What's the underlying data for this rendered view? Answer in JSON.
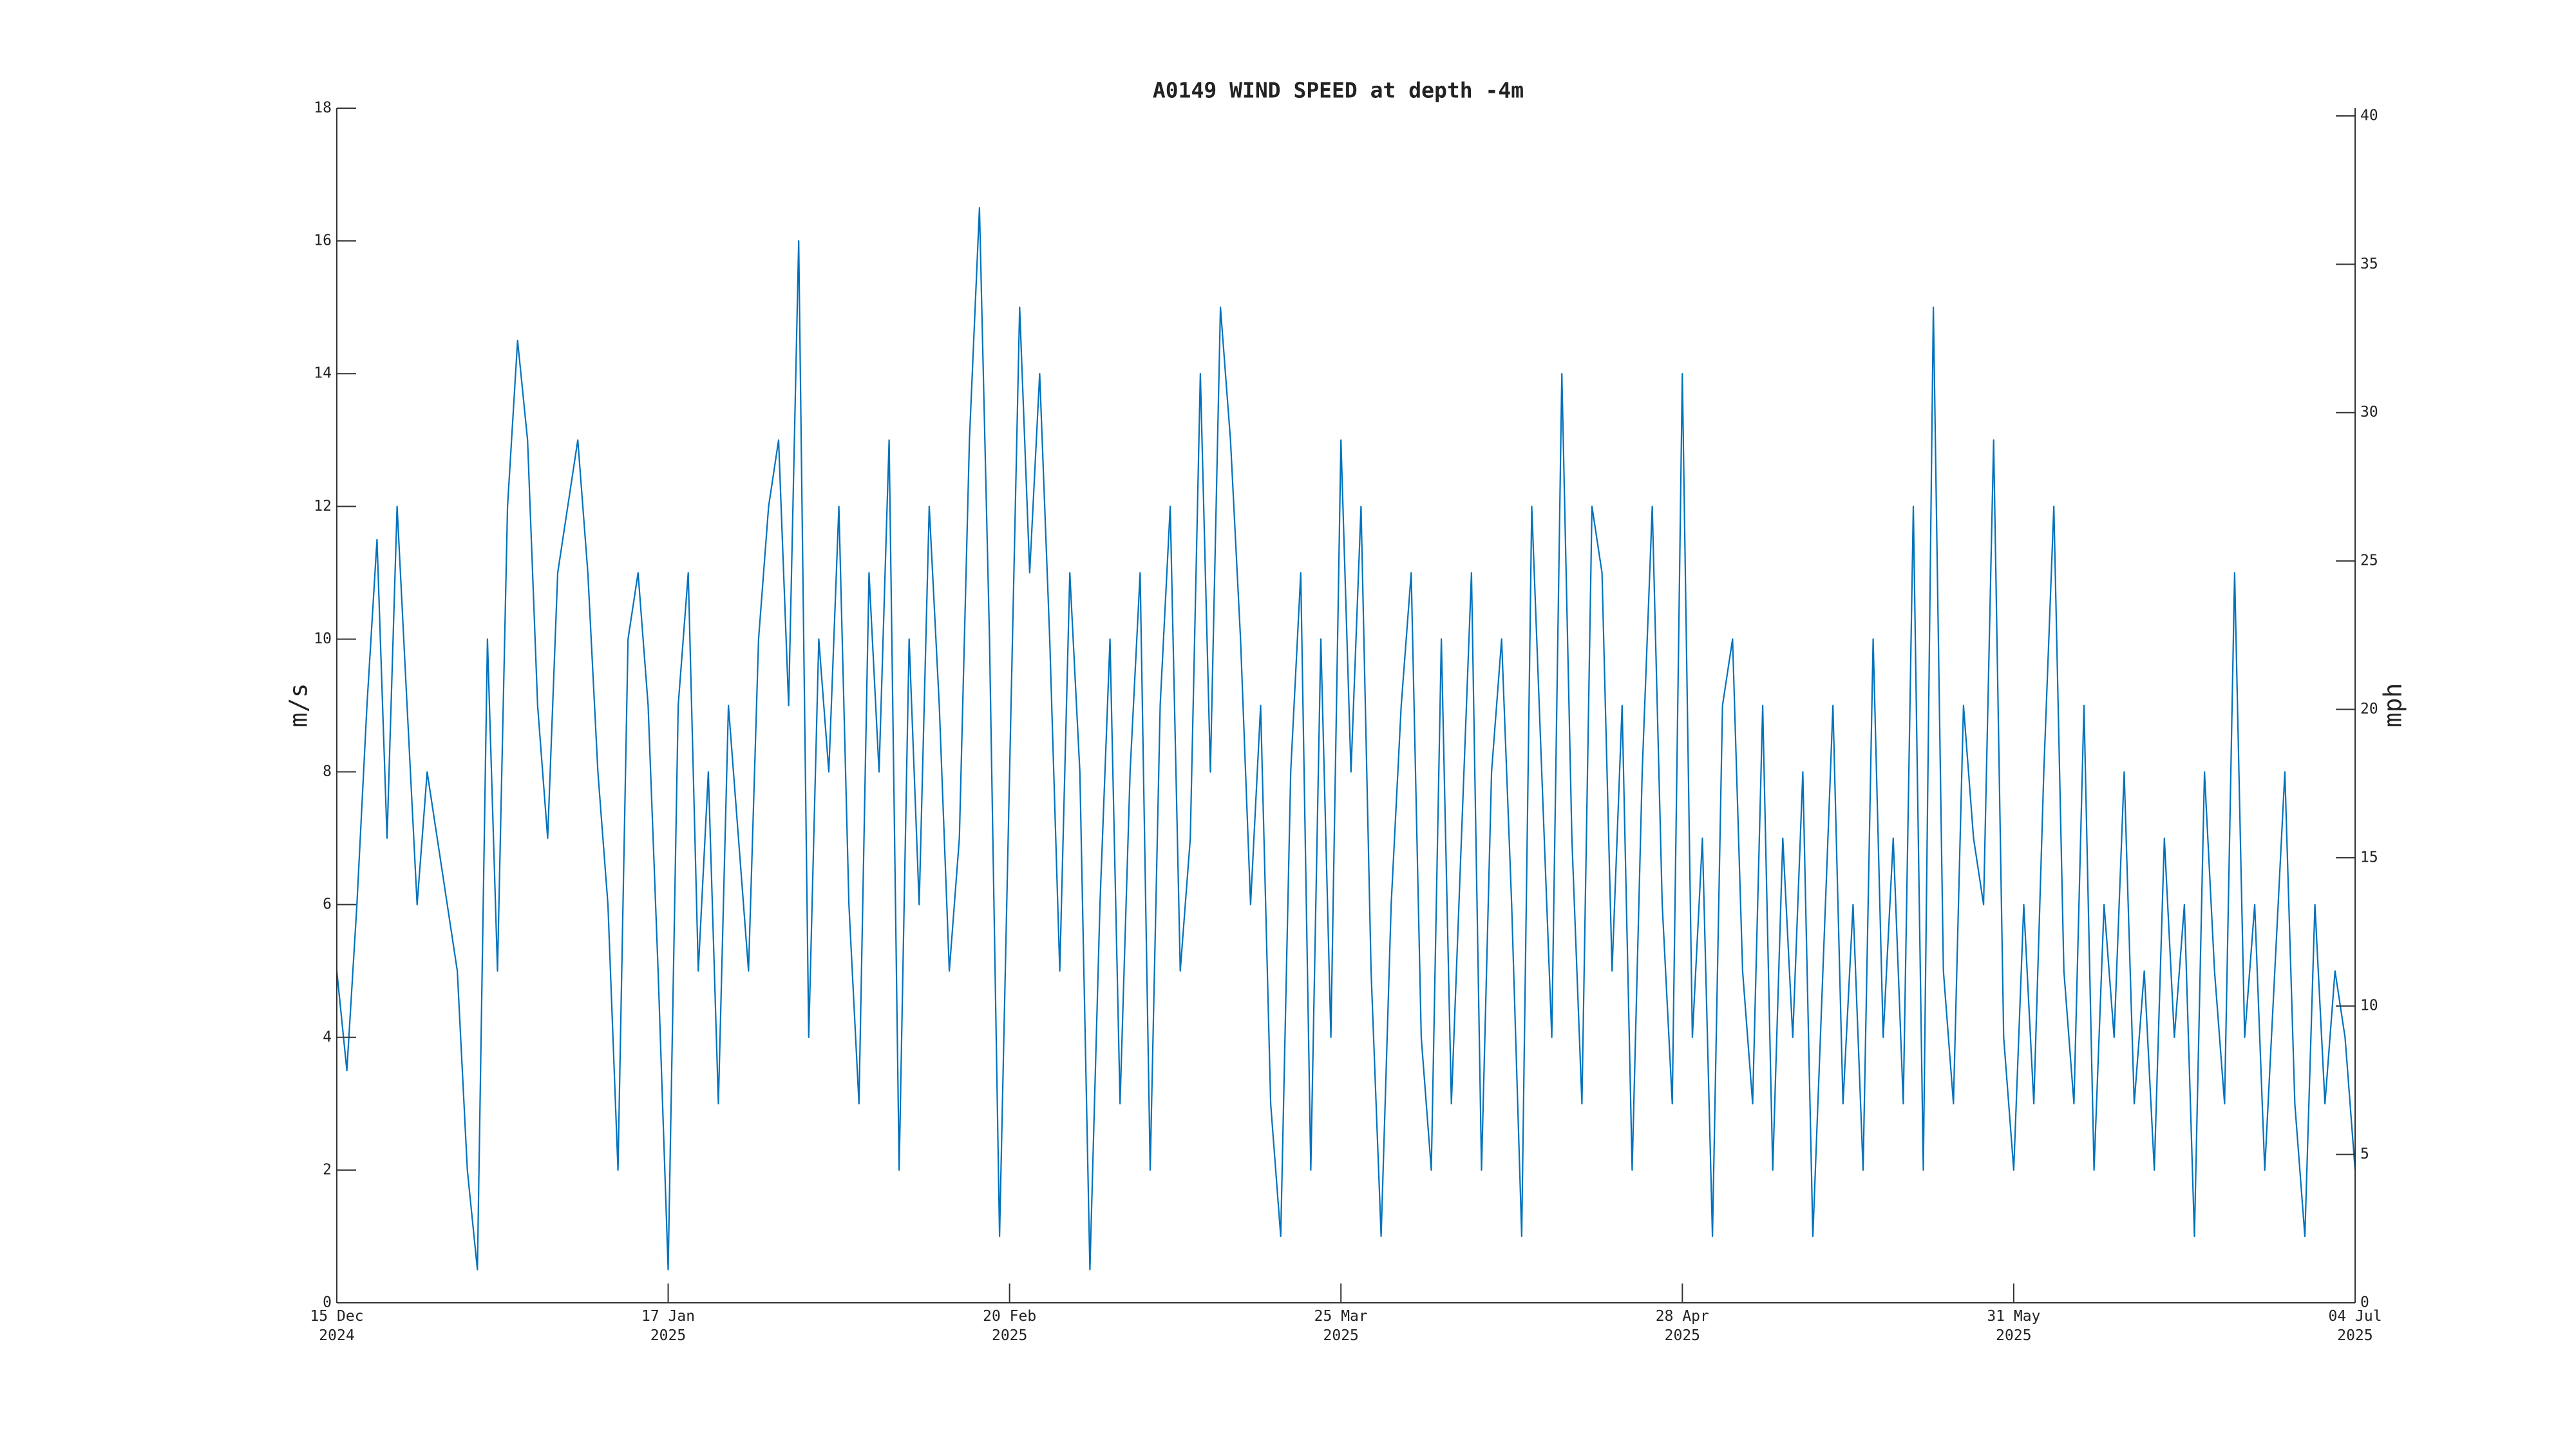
{
  "chart_data": {
    "type": "line",
    "title": "A0149 WIND SPEED at depth -4m",
    "ylabel": "m/s",
    "y2label": "mph",
    "x": [
      "2024-12-15",
      "2024-12-16",
      "2024-12-17",
      "2024-12-18",
      "2024-12-19",
      "2024-12-20",
      "2024-12-21",
      "2024-12-22",
      "2024-12-23",
      "2024-12-24",
      "2024-12-25",
      "2024-12-26",
      "2024-12-27",
      "2024-12-28",
      "2024-12-29",
      "2024-12-30",
      "2024-12-31",
      "2025-01-01",
      "2025-01-02",
      "2025-01-03",
      "2025-01-04",
      "2025-01-05",
      "2025-01-06",
      "2025-01-07",
      "2025-01-08",
      "2025-01-09",
      "2025-01-10",
      "2025-01-11",
      "2025-01-12",
      "2025-01-13",
      "2025-01-14",
      "2025-01-15",
      "2025-01-16",
      "2025-01-17",
      "2025-01-18",
      "2025-01-19",
      "2025-01-20",
      "2025-01-21",
      "2025-01-22",
      "2025-01-23",
      "2025-01-24",
      "2025-01-25",
      "2025-01-26",
      "2025-01-27",
      "2025-01-28",
      "2025-01-29",
      "2025-01-30",
      "2025-01-31",
      "2025-02-01",
      "2025-02-02",
      "2025-02-03",
      "2025-02-04",
      "2025-02-05",
      "2025-02-06",
      "2025-02-07",
      "2025-02-08",
      "2025-02-09",
      "2025-02-10",
      "2025-02-11",
      "2025-02-12",
      "2025-02-13",
      "2025-02-14",
      "2025-02-15",
      "2025-02-16",
      "2025-02-17",
      "2025-02-18",
      "2025-02-19",
      "2025-02-20",
      "2025-02-21",
      "2025-02-22",
      "2025-02-23",
      "2025-02-24",
      "2025-02-25",
      "2025-02-26",
      "2025-02-27",
      "2025-02-28",
      "2025-03-01",
      "2025-03-02",
      "2025-03-03",
      "2025-03-04",
      "2025-03-05",
      "2025-03-06",
      "2025-03-07",
      "2025-03-08",
      "2025-03-09",
      "2025-03-10",
      "2025-03-11",
      "2025-03-12",
      "2025-03-13",
      "2025-03-14",
      "2025-03-15",
      "2025-03-16",
      "2025-03-17",
      "2025-03-18",
      "2025-03-19",
      "2025-03-20",
      "2025-03-21",
      "2025-03-22",
      "2025-03-23",
      "2025-03-24",
      "2025-03-25",
      "2025-03-26",
      "2025-03-27",
      "2025-03-28",
      "2025-03-29",
      "2025-03-30",
      "2025-03-31",
      "2025-04-01",
      "2025-04-02",
      "2025-04-03",
      "2025-04-04",
      "2025-04-05",
      "2025-04-06",
      "2025-04-07",
      "2025-04-08",
      "2025-04-09",
      "2025-04-10",
      "2025-04-11",
      "2025-04-12",
      "2025-04-13",
      "2025-04-14",
      "2025-04-15",
      "2025-04-16",
      "2025-04-17",
      "2025-04-18",
      "2025-04-19",
      "2025-04-20",
      "2025-04-21",
      "2025-04-22",
      "2025-04-23",
      "2025-04-24",
      "2025-04-25",
      "2025-04-26",
      "2025-04-27",
      "2025-04-28",
      "2025-04-29",
      "2025-04-30",
      "2025-05-01",
      "2025-05-02",
      "2025-05-03",
      "2025-05-04",
      "2025-05-05",
      "2025-05-06",
      "2025-05-07",
      "2025-05-08",
      "2025-05-09",
      "2025-05-10",
      "2025-05-11",
      "2025-05-12",
      "2025-05-13",
      "2025-05-14",
      "2025-05-15",
      "2025-05-16",
      "2025-05-17",
      "2025-05-18",
      "2025-05-19",
      "2025-05-20",
      "2025-05-21",
      "2025-05-22",
      "2025-05-23",
      "2025-05-24",
      "2025-05-25",
      "2025-05-26",
      "2025-05-27",
      "2025-05-28",
      "2025-05-29",
      "2025-05-30",
      "2025-05-31",
      "2025-06-01",
      "2025-06-02",
      "2025-06-03",
      "2025-06-04",
      "2025-06-05",
      "2025-06-06",
      "2025-06-07",
      "2025-06-08",
      "2025-06-09",
      "2025-06-10",
      "2025-06-11",
      "2025-06-12",
      "2025-06-13",
      "2025-06-14",
      "2025-06-15",
      "2025-06-16",
      "2025-06-17",
      "2025-06-18",
      "2025-06-19",
      "2025-06-20",
      "2025-06-21",
      "2025-06-22",
      "2025-06-23",
      "2025-06-24",
      "2025-06-25",
      "2025-06-26",
      "2025-06-27",
      "2025-06-28",
      "2025-06-29",
      "2025-06-30",
      "2025-07-01",
      "2025-07-02",
      "2025-07-03",
      "2025-07-04"
    ],
    "series": [
      {
        "name": "A0149 WIND SPEED",
        "color": "#0072bd",
        "values": [
          5,
          3.5,
          6,
          9,
          11.5,
          7,
          12,
          9,
          6,
          8,
          7,
          6,
          5,
          2,
          0.5,
          10,
          5,
          12,
          14.5,
          13,
          9,
          7,
          11,
          12,
          13,
          11,
          8,
          6,
          2,
          10,
          11,
          9,
          5,
          0.5,
          9,
          11,
          5,
          8,
          3,
          9,
          7,
          5,
          10,
          12,
          13,
          9,
          16,
          4,
          10,
          8,
          12,
          6,
          3,
          11,
          8,
          13,
          2,
          10,
          6,
          12,
          9,
          5,
          7,
          13,
          16.5,
          10,
          1,
          8,
          15,
          11,
          14,
          10,
          5,
          11,
          8,
          0.5,
          6,
          10,
          3,
          8,
          11,
          2,
          9,
          12,
          5,
          7,
          14,
          8,
          15,
          13,
          10,
          6,
          9,
          3,
          1,
          8,
          11,
          2,
          10,
          4,
          13,
          8,
          12,
          5,
          1,
          6,
          9,
          11,
          4,
          2,
          10,
          3,
          7,
          11,
          2,
          8,
          10,
          6,
          1,
          12,
          8,
          4,
          14,
          7,
          3,
          12,
          11,
          5,
          9,
          2,
          8,
          12,
          6,
          3,
          14,
          4,
          7,
          1,
          9,
          10,
          5,
          3,
          9,
          2,
          7,
          4,
          8,
          1,
          5,
          9,
          3,
          6,
          2,
          10,
          4,
          7,
          3,
          12,
          2,
          15,
          5,
          3,
          9,
          7,
          6,
          13,
          4,
          2,
          6,
          3,
          8,
          12,
          5,
          3,
          9,
          2,
          6,
          4,
          8,
          3,
          5,
          2,
          7,
          4,
          6,
          1,
          8,
          5,
          3,
          11,
          4,
          6,
          2,
          5,
          8,
          3,
          1,
          6,
          3,
          5,
          4,
          2
        ]
      }
    ],
    "xlim": [
      "2024-12-15",
      "2025-07-04"
    ],
    "xticks": [
      {
        "value": "2024-12-15",
        "label": "15 Dec\n2024"
      },
      {
        "value": "2025-01-17",
        "label": "17 Jan\n2025"
      },
      {
        "value": "2025-02-20",
        "label": "20 Feb\n2025"
      },
      {
        "value": "2025-03-25",
        "label": "25 Mar\n2025"
      },
      {
        "value": "2025-04-28",
        "label": "28 Apr\n2025"
      },
      {
        "value": "2025-05-31",
        "label": "31 May\n2025"
      },
      {
        "value": "2025-07-04",
        "label": "04 Jul\n2025"
      }
    ],
    "ylim": [
      0,
      18
    ],
    "yticks": [
      0,
      2,
      4,
      6,
      8,
      10,
      12,
      14,
      16,
      18
    ],
    "y2lim": [
      0,
      40.26
    ],
    "y2ticks": [
      0,
      5,
      10,
      15,
      20,
      25,
      30,
      35,
      40
    ],
    "grid": false
  }
}
